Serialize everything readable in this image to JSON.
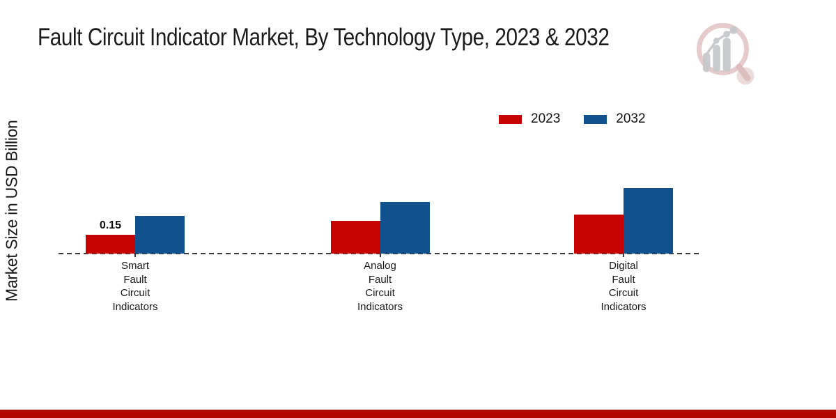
{
  "header": {
    "title": "Fault Circuit Indicator Market, By Technology Type, 2023 & 2032"
  },
  "branding": {
    "logo_icon": "magnifier-bar-chart-logo",
    "footer_bar_color": "#b30502"
  },
  "chart_data": {
    "type": "bar",
    "title": "Fault Circuit Indicator Market, By Technology Type, 2023 & 2032",
    "ylabel": "Market Size in USD Billion",
    "xlabel": "",
    "unit": "USD Billion",
    "categories": [
      "Smart Fault Circuit Indicators",
      "Analog Fault Circuit Indicators",
      "Digital Fault Circuit Indicators"
    ],
    "category_lines": [
      [
        "Smart",
        "Fault",
        "Circuit",
        "Indicators"
      ],
      [
        "Analog",
        "Fault",
        "Circuit",
        "Indicators"
      ],
      [
        "Digital",
        "Fault",
        "Circuit",
        "Indicators"
      ]
    ],
    "series": [
      {
        "name": "2023",
        "color": "#c60202",
        "values": [
          0.15,
          0.26,
          0.31
        ]
      },
      {
        "name": "2032",
        "color": "#11528e",
        "values": [
          0.3,
          0.41,
          0.52
        ]
      }
    ],
    "bar_labels": [
      [
        "0.15",
        "",
        ""
      ],
      [
        "",
        "",
        ""
      ]
    ],
    "ylim": [
      0,
      0.6
    ],
    "grid": false,
    "axis_style": "dashed-baseline-only",
    "legend_position": "top-right"
  }
}
